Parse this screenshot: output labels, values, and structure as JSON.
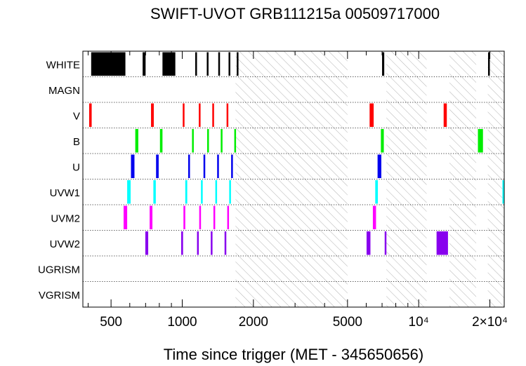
{
  "chart_data": {
    "type": "timeline",
    "title": "SWIFT-UVOT GRB111215a 00509717000",
    "xlabel": "Time since trigger (MET - 345650656)",
    "xscale": "log",
    "xlim": [
      380,
      23000
    ],
    "major_ticks": [
      {
        "value": 500,
        "label": "500"
      },
      {
        "value": 1000,
        "label": "1000"
      },
      {
        "value": 2000,
        "label": "2000"
      },
      {
        "value": 5000,
        "label": "5000"
      },
      {
        "value": 10000,
        "label": "10⁴"
      },
      {
        "value": 20000,
        "label": "2×10⁴"
      }
    ],
    "filters": [
      "WHITE",
      "MAGN",
      "V",
      "B",
      "U",
      "UVW1",
      "UVM2",
      "UVW2",
      "UGRISM",
      "VGRISM"
    ],
    "hatched_intervals": [
      [
        1680,
        5000
      ],
      [
        7300,
        10800
      ],
      [
        13500,
        17500
      ],
      [
        19600,
        23000
      ]
    ],
    "series": [
      {
        "name": "WHITE",
        "color": "#000000",
        "exposures": [
          [
            412,
            465
          ],
          [
            464,
            575
          ],
          [
            680,
            700
          ],
          [
            825,
            935
          ],
          [
            1135,
            1145
          ],
          [
            1270,
            1285
          ],
          [
            1420,
            1435
          ],
          [
            1570,
            1590
          ],
          [
            1700,
            1712
          ],
          [
            7000,
            7150
          ],
          [
            19650,
            19850
          ]
        ]
      },
      {
        "name": "MAGN",
        "color": "#000000",
        "exposures": []
      },
      {
        "name": "V",
        "color": "#ff0000",
        "exposures": [
          [
            404,
            414
          ],
          [
            738,
            758
          ],
          [
            1005,
            1022
          ],
          [
            1175,
            1195
          ],
          [
            1340,
            1358
          ],
          [
            1540,
            1560
          ],
          [
            6200,
            6450
          ],
          [
            12750,
            13150
          ]
        ]
      },
      {
        "name": "B",
        "color": "#00ee00",
        "exposures": [
          [
            633,
            652
          ],
          [
            805,
            825
          ],
          [
            1100,
            1118
          ],
          [
            1275,
            1292
          ],
          [
            1455,
            1473
          ],
          [
            1660,
            1680
          ],
          [
            6920,
            7120
          ],
          [
            17800,
            18700
          ]
        ]
      },
      {
        "name": "U",
        "color": "#0000ee",
        "exposures": [
          [
            607,
            628
          ],
          [
            775,
            795
          ],
          [
            1060,
            1078
          ],
          [
            1230,
            1248
          ],
          [
            1405,
            1423
          ],
          [
            1610,
            1628
          ],
          [
            6700,
            6950
          ]
        ]
      },
      {
        "name": "UVW1",
        "color": "#00ffff",
        "exposures": [
          [
            585,
            605
          ],
          [
            755,
            773
          ],
          [
            1030,
            1050
          ],
          [
            1200,
            1218
          ],
          [
            1380,
            1397
          ],
          [
            1580,
            1598
          ],
          [
            6550,
            6720
          ],
          [
            22600,
            23000
          ]
        ]
      },
      {
        "name": "UVM2",
        "color": "#ff00ff",
        "exposures": [
          [
            565,
            585
          ],
          [
            728,
            748
          ],
          [
            1012,
            1030
          ],
          [
            1180,
            1198
          ],
          [
            1355,
            1372
          ],
          [
            1550,
            1568
          ],
          [
            6400,
            6600
          ]
        ]
      },
      {
        "name": "UVW2",
        "color": "#8800ee",
        "exposures": [
          [
            698,
            718
          ],
          [
            990,
            1008
          ],
          [
            1155,
            1172
          ],
          [
            1320,
            1338
          ],
          [
            1510,
            1528
          ],
          [
            6020,
            6250
          ],
          [
            7180,
            7300
          ],
          [
            11900,
            13300
          ]
        ]
      },
      {
        "name": "UGRISM",
        "color": "#000000",
        "exposures": []
      },
      {
        "name": "VGRISM",
        "color": "#000000",
        "exposures": []
      }
    ],
    "grid": "dotted row separators",
    "legend": "none"
  }
}
